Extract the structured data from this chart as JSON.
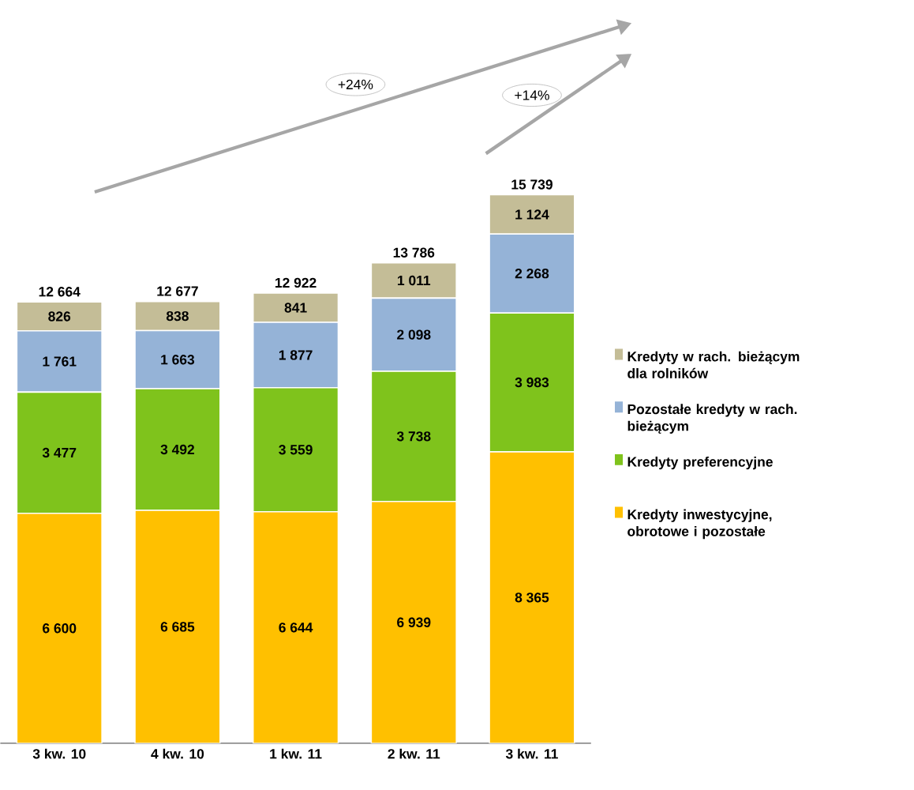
{
  "chart_data": {
    "type": "bar",
    "stacked": true,
    "categories": [
      "3 kw. 10",
      "4 kw. 10",
      "1 kw. 11",
      "2 kw. 11",
      "3 kw. 11"
    ],
    "series": [
      {
        "name": "Kredyty inwestycyjne, obrotowe i pozostałe",
        "color": "#ffc000",
        "values": [
          6600,
          6685,
          6644,
          6939,
          8365
        ],
        "value_labels": [
          "6 600",
          "6 685",
          "6 644",
          "6 939",
          "8 365"
        ]
      },
      {
        "name": "Kredyty preferencyjne",
        "color": "#7fc31c",
        "values": [
          3477,
          3492,
          3559,
          3738,
          3983
        ],
        "value_labels": [
          "3 477",
          "3 492",
          "3 559",
          "3 738",
          "3 983"
        ]
      },
      {
        "name": "Pozostałe kredyty w rach. bieżącym",
        "color": "#95b3d7",
        "values": [
          1761,
          1663,
          1877,
          2098,
          2268
        ],
        "value_labels": [
          "1 761",
          "1 663",
          "1 877",
          "2 098",
          "2 268"
        ]
      },
      {
        "name": "Kredyty w rach. bieżącym dla rolników",
        "color": "#c4bd97",
        "values": [
          826,
          838,
          841,
          1011,
          1124
        ],
        "value_labels": [
          "826",
          "838",
          "841",
          "1 011",
          "1 124"
        ]
      }
    ],
    "totals": [
      "12 664",
      "12 677",
      "12 922",
      "13 786",
      "15 739"
    ],
    "annotations": [
      "+24%",
      "+14%"
    ],
    "legend": "right"
  }
}
